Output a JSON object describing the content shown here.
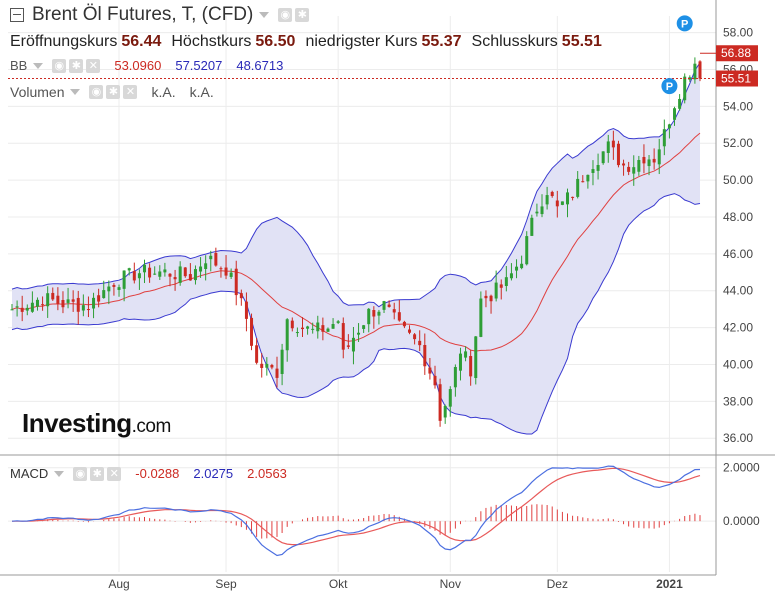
{
  "header": {
    "title": "Brent Öl Futures, T, (CFD)",
    "open_label": "Eröffnungskurs",
    "open": "56.44",
    "high_label": "Höchstkurs",
    "high": "56.50",
    "low_label": "niedrigster Kurs",
    "low": "55.37",
    "close_label": "Schlusskurs",
    "close": "55.51"
  },
  "bb": {
    "label": "BB",
    "mid": "53.0960",
    "upper": "57.5207",
    "lower": "48.6713"
  },
  "volume": {
    "label": "Volumen",
    "v1": "k.A.",
    "v2": "k.A."
  },
  "macd": {
    "label": "MACD",
    "hist": "-0.0288",
    "macd": "2.0275",
    "signal": "2.0563"
  },
  "logo": {
    "main": "Investing",
    "suffix": ".com"
  },
  "colors": {
    "up": "#2e9e36",
    "down": "#cc2a22",
    "band_fill": "#e1e2f5",
    "band_line": "#3a3ad0",
    "mid_line": "#e04040",
    "macd_line": "#4c6fe0",
    "signal_line": "#e85a5a",
    "marker": "#1e90e6"
  },
  "chart_data": {
    "type": "candlestick",
    "price_axis": {
      "ticks": [
        "58.00",
        "56.00",
        "54.00",
        "52.00",
        "50.00",
        "48.00",
        "46.00",
        "44.00",
        "42.00",
        "40.00",
        "38.00",
        "36.00"
      ],
      "ylim": [
        35.2,
        58.9
      ]
    },
    "macd_axis": {
      "ticks": [
        "2.0000",
        "0.0000"
      ],
      "ylim": [
        -1.9,
        2.4
      ]
    },
    "x_axis_labels": [
      {
        "label": "Aug",
        "index": 21
      },
      {
        "label": "Sep",
        "index": 42
      },
      {
        "label": "Okt",
        "index": 64
      },
      {
        "label": "Nov",
        "index": 86
      },
      {
        "label": "Dez",
        "index": 107
      },
      {
        "label": "2021",
        "index": 129
      }
    ],
    "current_price": "55.51",
    "last_high": "56.88",
    "markers": [
      "P",
      "P"
    ],
    "grid": true,
    "anchors": [
      [
        0,
        43.0
      ],
      [
        6,
        43.6
      ],
      [
        10,
        43.3
      ],
      [
        15,
        43.2
      ],
      [
        20,
        44.5
      ],
      [
        25,
        45.0
      ],
      [
        30,
        45.0
      ],
      [
        35,
        44.8
      ],
      [
        38,
        45.8
      ],
      [
        42,
        45.2
      ],
      [
        44,
        44.0
      ],
      [
        46,
        42.5
      ],
      [
        48,
        40.0
      ],
      [
        50,
        39.8
      ],
      [
        52,
        39.6
      ],
      [
        54,
        42.5
      ],
      [
        57,
        42.0
      ],
      [
        59,
        41.8
      ],
      [
        62,
        42.0
      ],
      [
        64,
        42.4
      ],
      [
        65,
        40.5
      ],
      [
        67,
        41.5
      ],
      [
        70,
        42.8
      ],
      [
        73,
        43.2
      ],
      [
        76,
        42.0
      ],
      [
        80,
        41.0
      ],
      [
        83,
        39.0
      ],
      [
        84,
        37.2
      ],
      [
        86,
        38.5
      ],
      [
        88,
        40.8
      ],
      [
        90,
        39.8
      ],
      [
        92,
        43.5
      ],
      [
        94,
        43.8
      ],
      [
        97,
        44.4
      ],
      [
        100,
        45.8
      ],
      [
        103,
        48.5
      ],
      [
        105,
        49.5
      ],
      [
        107,
        48.4
      ],
      [
        110,
        49.3
      ],
      [
        113,
        50.7
      ],
      [
        117,
        51.8
      ],
      [
        120,
        50.8
      ],
      [
        122,
        50.9
      ],
      [
        124,
        51.3
      ],
      [
        126,
        51.2
      ],
      [
        128,
        52.5
      ],
      [
        130,
        54.2
      ],
      [
        132,
        55.5
      ],
      [
        134,
        56.4
      ],
      [
        135,
        55.5
      ]
    ]
  }
}
